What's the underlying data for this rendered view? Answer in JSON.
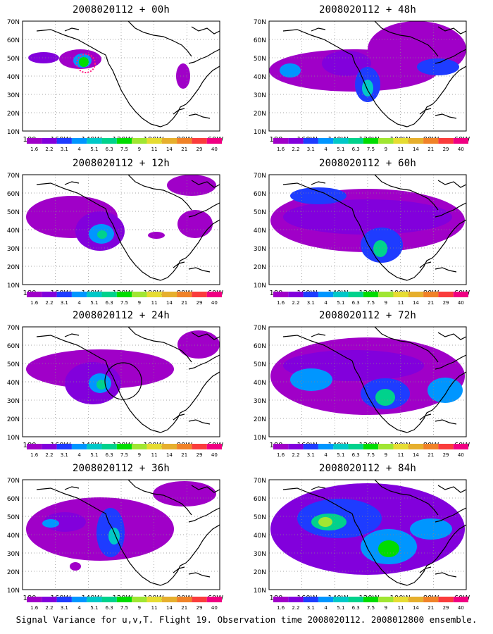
{
  "footer": "Signal Variance for u,v,T. Flight 19. Observation time 2008020112. 2008012800 ensemble.",
  "lat_labels": [
    "70N",
    "60N",
    "50N",
    "40N",
    "30N",
    "20N",
    "10N"
  ],
  "lon_labels": [
    "180",
    "160W",
    "140W",
    "120W",
    "100W",
    "80W",
    "60W"
  ],
  "colorbar": {
    "labels": [
      "1.6",
      "2.2",
      "3.1",
      "4",
      "5.1",
      "6.3",
      "7.5",
      "9",
      "11",
      "14",
      "21",
      "29",
      "40"
    ],
    "colors": [
      "#a000c8",
      "#8200dc",
      "#1e3cff",
      "#0096ff",
      "#00c8c8",
      "#00d28c",
      "#00dc00",
      "#a0e632",
      "#e6dc32",
      "#e6af2d",
      "#f08228",
      "#fa3c3c",
      "#f00082"
    ]
  },
  "panels": [
    {
      "title": "2008020112 + 00h",
      "blobs": [
        {
          "cx": 30,
          "cy": 52,
          "rx": 22,
          "ry": 8,
          "level": 1
        },
        {
          "cx": 82,
          "cy": 54,
          "rx": 30,
          "ry": 14,
          "level": 0
        },
        {
          "cx": 85,
          "cy": 56,
          "rx": 13,
          "ry": 10,
          "level": 3
        },
        {
          "cx": 87,
          "cy": 58,
          "rx": 7,
          "ry": 7,
          "level": 6
        },
        {
          "cx": 228,
          "cy": 78,
          "rx": 10,
          "ry": 18,
          "level": 0
        }
      ],
      "circle": {
        "cx": 90,
        "cy": 60,
        "r": 13,
        "style": "dotted"
      }
    },
    {
      "title": "2008020112 + 48h",
      "blobs": [
        {
          "cx": 120,
          "cy": 70,
          "rx": 120,
          "ry": 30,
          "level": 0
        },
        {
          "cx": 210,
          "cy": 40,
          "rx": 70,
          "ry": 40,
          "level": 0
        },
        {
          "cx": 110,
          "cy": 60,
          "rx": 35,
          "ry": 18,
          "level": 1
        },
        {
          "cx": 140,
          "cy": 90,
          "rx": 18,
          "ry": 25,
          "level": 2
        },
        {
          "cx": 140,
          "cy": 95,
          "rx": 8,
          "ry": 12,
          "level": 4
        },
        {
          "cx": 240,
          "cy": 65,
          "rx": 30,
          "ry": 12,
          "level": 2
        },
        {
          "cx": 30,
          "cy": 70,
          "rx": 15,
          "ry": 10,
          "level": 3
        }
      ]
    },
    {
      "title": "2008020112 + 12h",
      "blobs": [
        {
          "cx": 70,
          "cy": 60,
          "rx": 65,
          "ry": 30,
          "level": 0
        },
        {
          "cx": 110,
          "cy": 80,
          "rx": 35,
          "ry": 28,
          "level": 1
        },
        {
          "cx": 112,
          "cy": 84,
          "rx": 18,
          "ry": 14,
          "level": 3
        },
        {
          "cx": 113,
          "cy": 85,
          "rx": 7,
          "ry": 6,
          "level": 5
        },
        {
          "cx": 245,
          "cy": 70,
          "rx": 25,
          "ry": 20,
          "level": 0
        },
        {
          "cx": 240,
          "cy": 15,
          "rx": 35,
          "ry": 15,
          "level": 0
        },
        {
          "cx": 190,
          "cy": 86,
          "rx": 12,
          "ry": 5,
          "level": 0
        }
      ]
    },
    {
      "title": "2008020112 + 60h",
      "blobs": [
        {
          "cx": 140,
          "cy": 65,
          "rx": 138,
          "ry": 45,
          "level": 0
        },
        {
          "cx": 140,
          "cy": 60,
          "rx": 120,
          "ry": 25,
          "level": 1
        },
        {
          "cx": 160,
          "cy": 100,
          "rx": 30,
          "ry": 25,
          "level": 2
        },
        {
          "cx": 158,
          "cy": 105,
          "rx": 10,
          "ry": 12,
          "level": 5
        },
        {
          "cx": 70,
          "cy": 30,
          "rx": 40,
          "ry": 12,
          "level": 2
        }
      ]
    },
    {
      "title": "2008020112 + 24h",
      "blobs": [
        {
          "cx": 110,
          "cy": 60,
          "rx": 105,
          "ry": 28,
          "level": 0
        },
        {
          "cx": 100,
          "cy": 80,
          "rx": 40,
          "ry": 30,
          "level": 1
        },
        {
          "cx": 110,
          "cy": 80,
          "rx": 16,
          "ry": 14,
          "level": 3
        },
        {
          "cx": 112,
          "cy": 82,
          "rx": 7,
          "ry": 7,
          "level": 5
        },
        {
          "cx": 250,
          "cy": 25,
          "rx": 30,
          "ry": 20,
          "level": 0
        }
      ],
      "circle": {
        "cx": 143,
        "cy": 77,
        "r": 26,
        "style": "solid"
      }
    },
    {
      "title": "2008020112 + 72h",
      "blobs": [
        {
          "cx": 140,
          "cy": 70,
          "rx": 138,
          "ry": 55,
          "level": 0
        },
        {
          "cx": 120,
          "cy": 55,
          "rx": 100,
          "ry": 22,
          "level": 1
        },
        {
          "cx": 60,
          "cy": 75,
          "rx": 30,
          "ry": 16,
          "level": 3
        },
        {
          "cx": 165,
          "cy": 95,
          "rx": 35,
          "ry": 22,
          "level": 2
        },
        {
          "cx": 165,
          "cy": 100,
          "rx": 14,
          "ry": 12,
          "level": 5
        },
        {
          "cx": 250,
          "cy": 90,
          "rx": 25,
          "ry": 18,
          "level": 3
        }
      ]
    },
    {
      "title": "2008020112 + 36h",
      "blobs": [
        {
          "cx": 110,
          "cy": 70,
          "rx": 105,
          "ry": 45,
          "level": 0
        },
        {
          "cx": 60,
          "cy": 60,
          "rx": 30,
          "ry": 14,
          "level": 1
        },
        {
          "cx": 40,
          "cy": 62,
          "rx": 12,
          "ry": 6,
          "level": 3
        },
        {
          "cx": 125,
          "cy": 75,
          "rx": 20,
          "ry": 35,
          "level": 2
        },
        {
          "cx": 130,
          "cy": 80,
          "rx": 8,
          "ry": 12,
          "level": 4
        },
        {
          "cx": 75,
          "cy": 123,
          "rx": 8,
          "ry": 6,
          "level": 0
        },
        {
          "cx": 230,
          "cy": 20,
          "rx": 45,
          "ry": 18,
          "level": 0
        }
      ]
    },
    {
      "title": "2008020112 + 84h",
      "blobs": [
        {
          "cx": 140,
          "cy": 70,
          "rx": 138,
          "ry": 65,
          "level": 1
        },
        {
          "cx": 100,
          "cy": 55,
          "rx": 60,
          "ry": 28,
          "level": 2
        },
        {
          "cx": 85,
          "cy": 60,
          "rx": 25,
          "ry": 12,
          "level": 5
        },
        {
          "cx": 80,
          "cy": 60,
          "rx": 10,
          "ry": 7,
          "level": 7
        },
        {
          "cx": 170,
          "cy": 95,
          "rx": 40,
          "ry": 25,
          "level": 3
        },
        {
          "cx": 170,
          "cy": 98,
          "rx": 15,
          "ry": 12,
          "level": 6
        },
        {
          "cx": 230,
          "cy": 70,
          "rx": 30,
          "ry": 15,
          "level": 3
        }
      ]
    }
  ]
}
